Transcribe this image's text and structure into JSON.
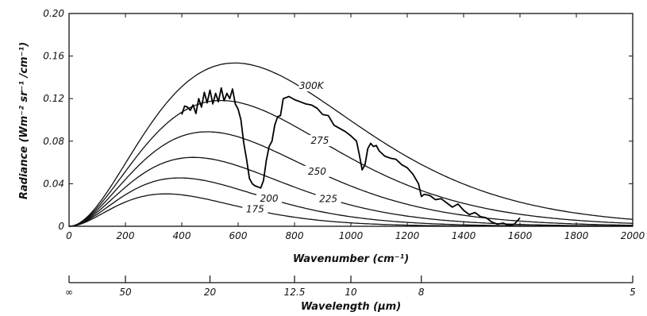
{
  "chart_data": {
    "type": "line",
    "title": "",
    "xlabel": "Wavenumber (cm⁻¹)",
    "ylabel": "Radiance (Wm⁻² sr⁻¹ /cm⁻¹)",
    "xlim": [
      0,
      2000
    ],
    "ylim": [
      0,
      0.2
    ],
    "x_ticks": [
      "0",
      "200",
      "400",
      "600",
      "800",
      "1000",
      "1200",
      "1400",
      "1600",
      "1800",
      "2000"
    ],
    "y_ticks": [
      "0",
      "0.04",
      "0.08",
      "0.12",
      "0.16",
      "0.20"
    ],
    "secondary_axis": {
      "label": "Wavelength (μm)",
      "ticks": [
        {
          "label": "∞",
          "wavenumber": 0
        },
        {
          "label": "50",
          "wavenumber": 200
        },
        {
          "label": "20",
          "wavenumber": 500
        },
        {
          "label": "12.5",
          "wavenumber": 800
        },
        {
          "label": "10",
          "wavenumber": 1000
        },
        {
          "label": "8",
          "wavenumber": 1250
        },
        {
          "label": "5",
          "wavenumber": 2000
        }
      ]
    },
    "blackbody_curves": [
      {
        "name": "300K",
        "temperature": 300
      },
      {
        "name": "275",
        "temperature": 275
      },
      {
        "name": "250",
        "temperature": 250
      },
      {
        "name": "225",
        "temperature": 225
      },
      {
        "name": "200",
        "temperature": 200
      },
      {
        "name": "175",
        "temperature": 175
      }
    ],
    "series": [
      {
        "name": "",
        "x": [
          400,
          410,
          420,
          430,
          440,
          450,
          460,
          470,
          480,
          490,
          500,
          510,
          520,
          530,
          540,
          550,
          560,
          570,
          580,
          590,
          600,
          610,
          620,
          630,
          640,
          650,
          660,
          670,
          680,
          690,
          700,
          710,
          720,
          730,
          740,
          750,
          760,
          770,
          780,
          800,
          820,
          840,
          860,
          880,
          900,
          920,
          940,
          960,
          980,
          1000,
          1020,
          1030,
          1040,
          1050,
          1060,
          1070,
          1080,
          1090,
          1100,
          1120,
          1140,
          1160,
          1180,
          1200,
          1220,
          1240,
          1250,
          1260,
          1280,
          1300,
          1320,
          1340,
          1360,
          1380,
          1400,
          1420,
          1440,
          1460,
          1480,
          1500,
          1520,
          1540,
          1560,
          1580,
          1600
        ],
        "values": [
          0.105,
          0.113,
          0.112,
          0.109,
          0.114,
          0.106,
          0.12,
          0.112,
          0.126,
          0.116,
          0.128,
          0.115,
          0.125,
          0.117,
          0.13,
          0.118,
          0.125,
          0.12,
          0.129,
          0.115,
          0.11,
          0.1,
          0.078,
          0.063,
          0.045,
          0.04,
          0.038,
          0.037,
          0.036,
          0.043,
          0.062,
          0.075,
          0.08,
          0.095,
          0.103,
          0.104,
          0.12,
          0.121,
          0.122,
          0.119,
          0.117,
          0.115,
          0.114,
          0.111,
          0.105,
          0.104,
          0.095,
          0.092,
          0.089,
          0.085,
          0.08,
          0.067,
          0.053,
          0.058,
          0.073,
          0.078,
          0.075,
          0.076,
          0.071,
          0.066,
          0.064,
          0.063,
          0.058,
          0.055,
          0.049,
          0.04,
          0.028,
          0.03,
          0.029,
          0.025,
          0.026,
          0.022,
          0.018,
          0.021,
          0.015,
          0.011,
          0.013,
          0.009,
          0.008,
          0.004,
          0.002,
          0.003,
          0.001,
          0.002,
          0.008
        ]
      }
    ]
  }
}
